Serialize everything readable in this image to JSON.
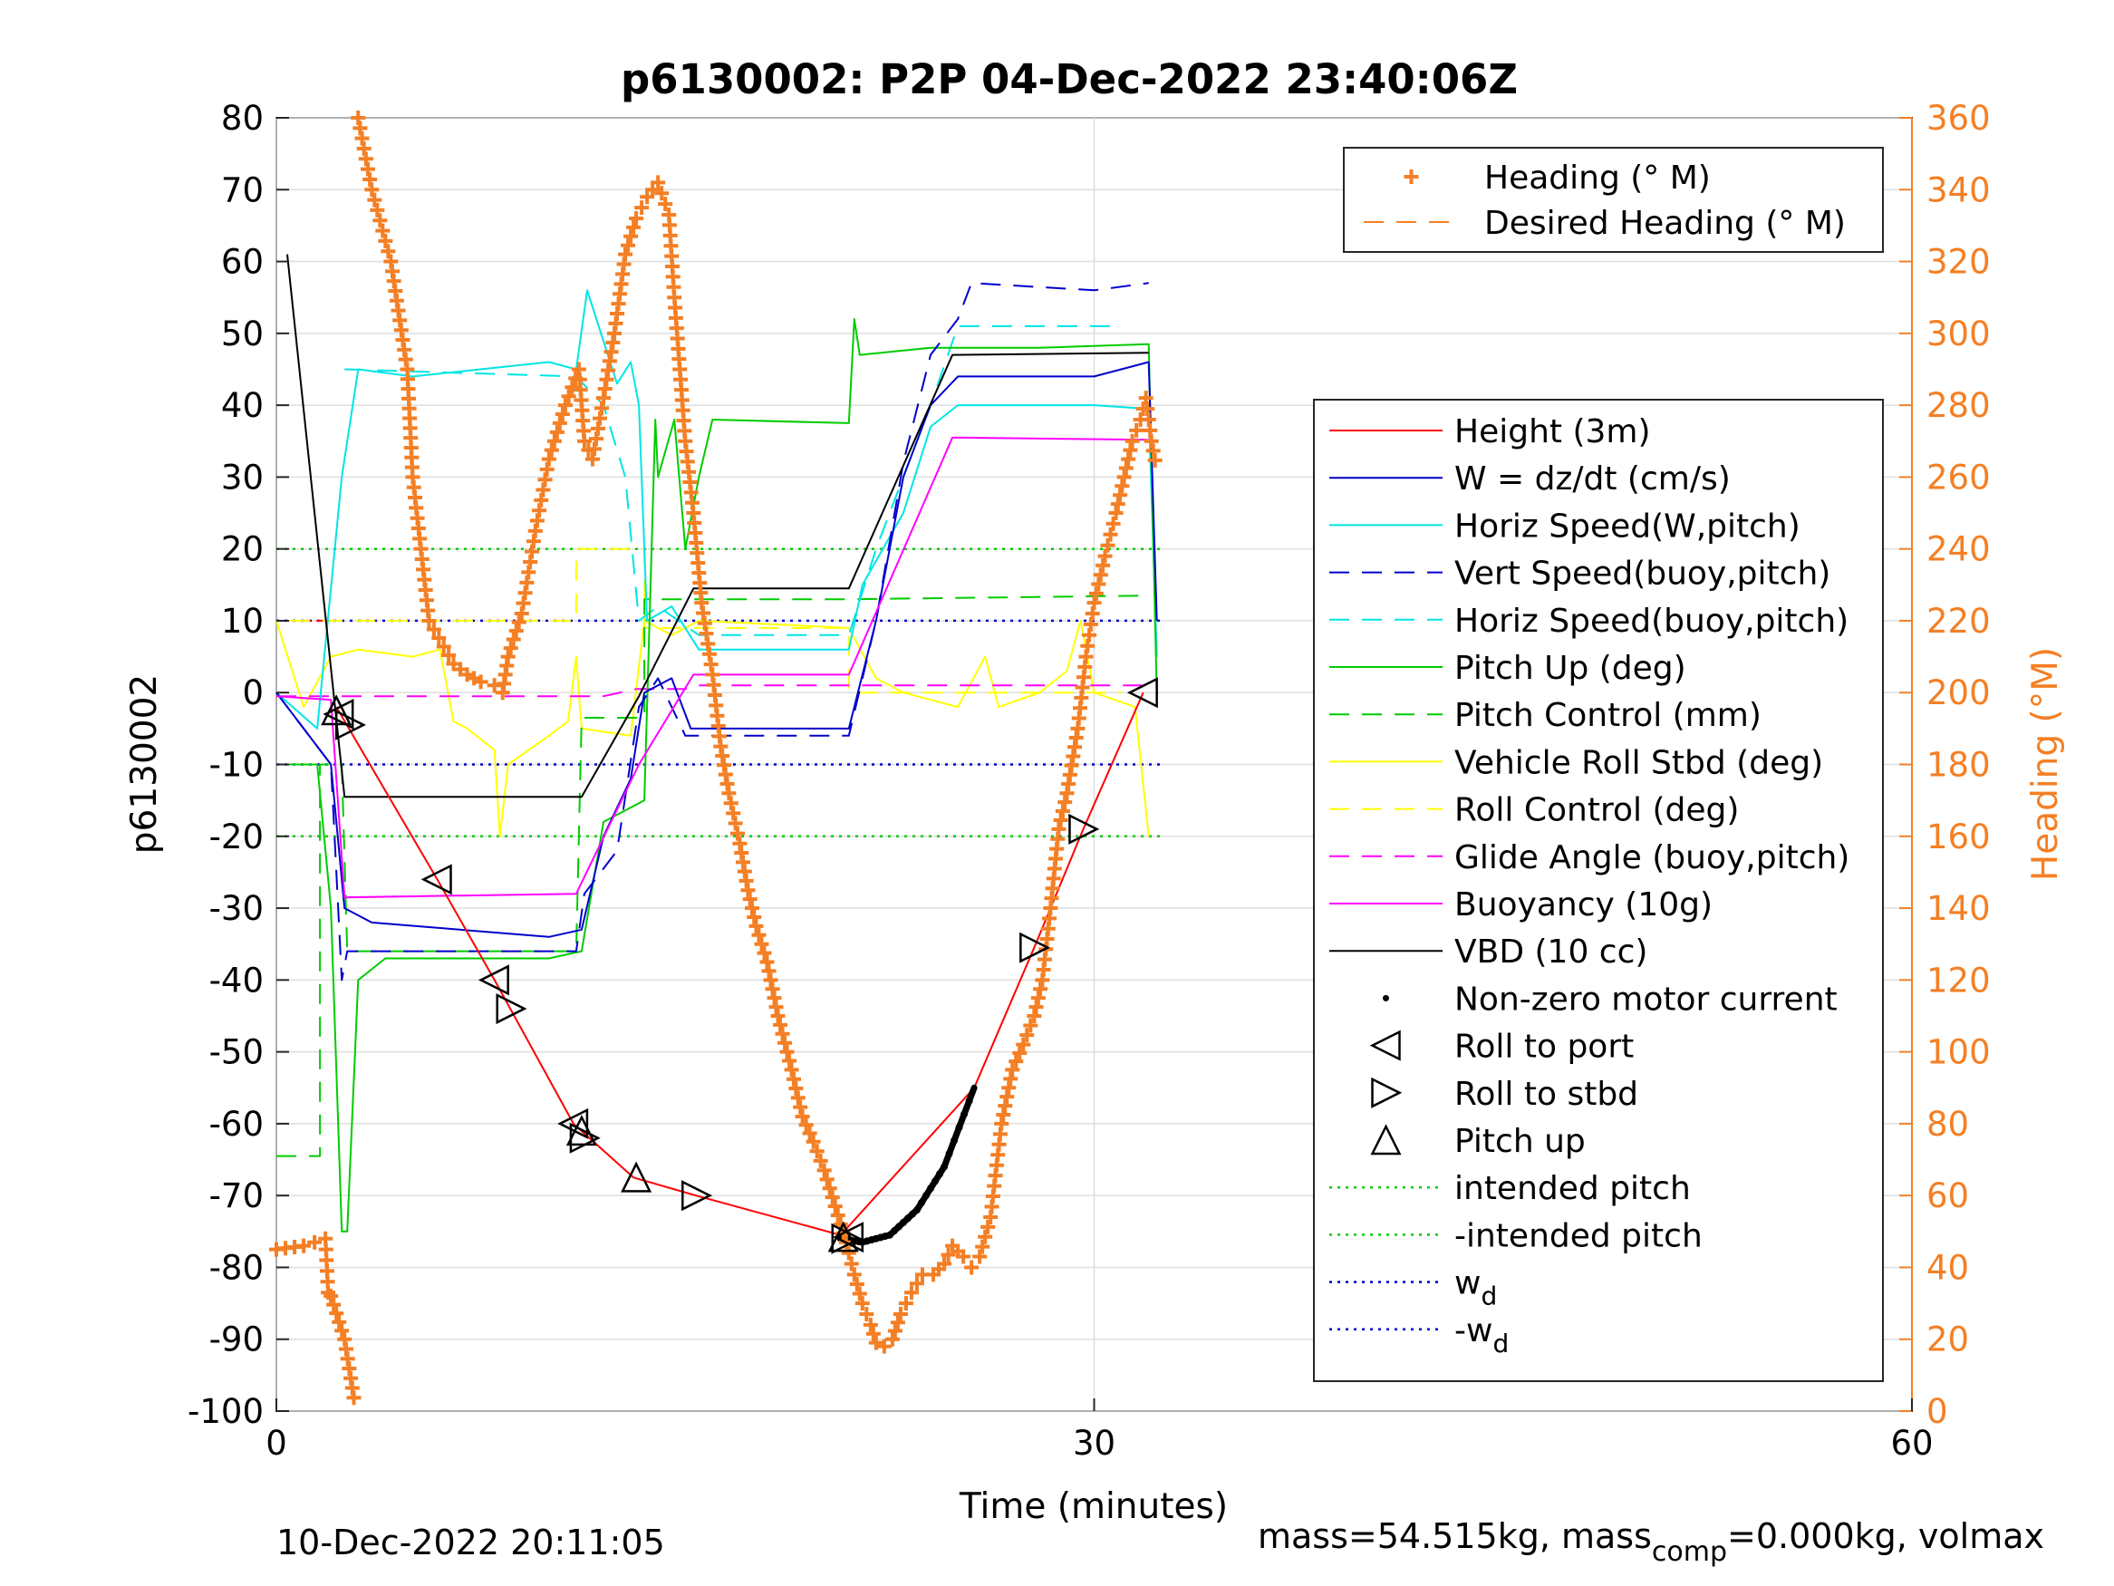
{
  "chart_data": {
    "type": "line",
    "title": "p6130002: P2P 04-Dec-2022 23:40:06Z",
    "xlabel": "Time (minutes)",
    "ylabel": "p6130002",
    "ylabel_right": "Heading (°M)",
    "xlim": [
      0,
      60
    ],
    "ylim": [
      -100,
      80
    ],
    "ylim_right": [
      0,
      360
    ],
    "xticks": [
      "0",
      "30",
      "60"
    ],
    "yticks": [
      "80",
      "70",
      "60",
      "50",
      "40",
      "30",
      "20",
      "10",
      "0",
      "-10",
      "-20",
      "-30",
      "-40",
      "-50",
      "-60",
      "-70",
      "-80",
      "-90",
      "-100"
    ],
    "yticks_right": [
      "360",
      "340",
      "320",
      "300",
      "280",
      "260",
      "240",
      "220",
      "200",
      "180",
      "160",
      "140",
      "120",
      "100",
      "80",
      "60",
      "40",
      "20",
      "0"
    ],
    "grid": true,
    "footer_left": "10-Dec-2022 20:11:05",
    "footer_right": {
      "a": "mass=54.515kg, mass",
      "sub": "comp",
      "b": "=0.000kg, volmax"
    },
    "legend_top": [
      {
        "label": "Heading (° M)",
        "color": "#f47f24",
        "style": "plus"
      },
      {
        "label": "Desired Heading (° M)",
        "color": "#f47f24",
        "style": "dash"
      }
    ],
    "legend_main": [
      {
        "label": "Height (3m)",
        "color": "#ff0000",
        "style": "solid"
      },
      {
        "label": "W = dz/dt (cm/s)",
        "color": "#0000cc",
        "style": "solid"
      },
      {
        "label": "Horiz Speed(W,pitch)",
        "color": "#00e5e5",
        "style": "solid"
      },
      {
        "label": "Vert Speed(buoy,pitch)",
        "color": "#0000cc",
        "style": "dash"
      },
      {
        "label": "Horiz Speed(buoy,pitch)",
        "color": "#00e5e5",
        "style": "dash"
      },
      {
        "label": "Pitch Up (deg)",
        "color": "#00cc00",
        "style": "solid"
      },
      {
        "label": "Pitch Control (mm)",
        "color": "#00cc00",
        "style": "dash"
      },
      {
        "label": "Vehicle Roll Stbd (deg)",
        "color": "#ffff00",
        "style": "solid"
      },
      {
        "label": "Roll Control (deg)",
        "color": "#ffff00",
        "style": "dash"
      },
      {
        "label": "Glide Angle (buoy,pitch)",
        "color": "#ff00ff",
        "style": "dash"
      },
      {
        "label": "Buoyancy (10g)",
        "color": "#ff00ff",
        "style": "solid"
      },
      {
        "label": "VBD (10 cc)",
        "color": "#000000",
        "style": "solid"
      },
      {
        "label": "Non-zero motor current",
        "color": "#000000",
        "style": "dot"
      },
      {
        "label": "Roll to port",
        "color": "#000000",
        "style": "tri-left"
      },
      {
        "label": "Roll to stbd",
        "color": "#000000",
        "style": "tri-right"
      },
      {
        "label": "Pitch up",
        "color": "#000000",
        "style": "tri-up"
      },
      {
        "label": "intended pitch",
        "color": "#00cc00",
        "style": "dotted"
      },
      {
        "label": "-intended pitch",
        "color": "#00cc00",
        "style": "dotted"
      },
      {
        "label": "w",
        "sub": "d",
        "color": "#0000cc",
        "style": "dotted"
      },
      {
        "label": "-w",
        "sub": "d",
        "color": "#0000cc",
        "style": "dotted"
      }
    ],
    "series": {
      "vbd": [
        [
          0.4,
          61
        ],
        [
          2.5,
          -14.5
        ],
        [
          11.2,
          -14.5
        ],
        [
          13.3,
          -0.5
        ],
        [
          15.3,
          14.5
        ],
        [
          21,
          14.5
        ],
        [
          24.8,
          47
        ],
        [
          32,
          47.3
        ]
      ],
      "buoyancy": [
        [
          0,
          -0.5
        ],
        [
          2,
          -1
        ],
        [
          2.5,
          -28.5
        ],
        [
          11,
          -28
        ],
        [
          13.3,
          -10
        ],
        [
          15.3,
          2.5
        ],
        [
          21,
          2.5
        ],
        [
          24.8,
          35.5
        ],
        [
          32,
          35.2
        ]
      ],
      "height": [
        [
          2.2,
          -2
        ],
        [
          5.9,
          -26
        ],
        [
          8,
          -40
        ],
        [
          10.9,
          -60
        ],
        [
          13.1,
          -67.5
        ],
        [
          15.4,
          -70
        ],
        [
          20.7,
          -75.5
        ],
        [
          25.6,
          -55
        ],
        [
          27.8,
          -35.5
        ],
        [
          29.6,
          -19
        ],
        [
          31.8,
          0
        ]
      ],
      "motor_current": [
        [
          20.7,
          -76
        ],
        [
          21.5,
          -76.5
        ],
        [
          22.5,
          -75.5
        ],
        [
          23.5,
          -72
        ],
        [
          24.5,
          -66
        ],
        [
          25.6,
          -55
        ]
      ],
      "w": [
        [
          0,
          0
        ],
        [
          2,
          -10
        ],
        [
          2.5,
          -30
        ],
        [
          3.5,
          -32
        ],
        [
          10,
          -34
        ],
        [
          11.2,
          -33
        ],
        [
          12,
          -20
        ],
        [
          13,
          -12
        ],
        [
          13.5,
          0
        ],
        [
          14.5,
          2
        ],
        [
          15.2,
          -5
        ],
        [
          21,
          -5
        ],
        [
          22,
          10
        ],
        [
          23,
          30
        ],
        [
          24,
          40
        ],
        [
          25,
          44
        ],
        [
          30,
          44
        ],
        [
          32,
          46
        ],
        [
          32.3,
          10
        ]
      ],
      "pitch_up": [
        [
          0,
          -10
        ],
        [
          1.5,
          -10
        ],
        [
          2,
          -30
        ],
        [
          2.4,
          -75
        ],
        [
          2.6,
          -75
        ],
        [
          3,
          -40
        ],
        [
          4,
          -37
        ],
        [
          10,
          -37
        ],
        [
          11.2,
          -36
        ],
        [
          12,
          -18
        ],
        [
          13.5,
          -15
        ],
        [
          13.9,
          38
        ],
        [
          14,
          30
        ],
        [
          14.6,
          38
        ],
        [
          15,
          20
        ],
        [
          15.5,
          30
        ],
        [
          16,
          38
        ],
        [
          21,
          37.5
        ],
        [
          21.2,
          52
        ],
        [
          21.4,
          47
        ],
        [
          24,
          48
        ],
        [
          28,
          48
        ],
        [
          32,
          48.5
        ],
        [
          32.3,
          -0.5
        ]
      ],
      "pitch_control": [
        [
          0,
          -64.5
        ],
        [
          1.6,
          -64.5
        ],
        [
          1.6,
          -10
        ],
        [
          2.4,
          -10
        ],
        [
          2.6,
          -36
        ],
        [
          11,
          -36
        ],
        [
          11.2,
          -3.5
        ],
        [
          13.5,
          -3.5
        ],
        [
          13.5,
          13
        ],
        [
          21,
          13
        ],
        [
          21,
          13
        ],
        [
          32,
          13.5
        ]
      ],
      "horiz_speed": [
        [
          0,
          0
        ],
        [
          1.5,
          -5
        ],
        [
          2.4,
          30
        ],
        [
          3,
          45
        ],
        [
          5,
          44
        ],
        [
          10,
          46
        ],
        [
          11,
          45
        ],
        [
          11.4,
          56
        ],
        [
          12.5,
          43
        ],
        [
          13,
          46
        ],
        [
          13.3,
          40
        ],
        [
          13.6,
          10
        ],
        [
          14.5,
          12
        ],
        [
          15.5,
          6
        ],
        [
          21,
          6
        ],
        [
          21.5,
          15
        ],
        [
          23,
          25
        ],
        [
          24,
          37
        ],
        [
          25,
          40
        ],
        [
          30,
          40
        ],
        [
          32,
          39.5
        ],
        [
          32.3,
          5
        ]
      ],
      "vert_speed_buoy": [
        [
          0,
          0
        ],
        [
          2,
          -10
        ],
        [
          2.4,
          -40
        ],
        [
          2.6,
          -36
        ],
        [
          11,
          -36
        ],
        [
          11.3,
          -28
        ],
        [
          12.5,
          -22
        ],
        [
          13.3,
          -2
        ],
        [
          14,
          2
        ],
        [
          15,
          -6
        ],
        [
          21,
          -6
        ],
        [
          22,
          10
        ],
        [
          23,
          32
        ],
        [
          24,
          47
        ],
        [
          25,
          52
        ],
        [
          25.5,
          57
        ],
        [
          30,
          56
        ],
        [
          32,
          57
        ]
      ],
      "horiz_speed_buoy": [
        [
          2.5,
          45
        ],
        [
          11,
          44
        ],
        [
          12,
          40
        ],
        [
          12.8,
          30
        ],
        [
          13.3,
          10
        ],
        [
          14,
          12
        ],
        [
          15.5,
          8
        ],
        [
          21,
          8
        ],
        [
          22,
          20
        ],
        [
          24,
          40
        ],
        [
          25,
          51
        ],
        [
          31,
          51
        ]
      ],
      "roll": [
        [
          0,
          10
        ],
        [
          1,
          -2
        ],
        [
          2,
          5
        ],
        [
          3,
          6
        ],
        [
          5,
          5
        ],
        [
          6,
          6
        ],
        [
          6.5,
          -4
        ],
        [
          7,
          -5
        ],
        [
          8,
          -8
        ],
        [
          8.2,
          -20
        ],
        [
          8.5,
          -10
        ],
        [
          10,
          -6
        ],
        [
          10.7,
          -4
        ],
        [
          11,
          5
        ],
        [
          11.2,
          -5
        ],
        [
          13,
          -6
        ],
        [
          13.5,
          10
        ],
        [
          14.5,
          8
        ],
        [
          15.5,
          10
        ],
        [
          21,
          9
        ],
        [
          22,
          2
        ],
        [
          23,
          0
        ],
        [
          25,
          -2
        ],
        [
          26,
          5
        ],
        [
          26.5,
          -2
        ],
        [
          28,
          0
        ],
        [
          29,
          3
        ],
        [
          29.5,
          10
        ],
        [
          30,
          0
        ],
        [
          31.5,
          -2
        ],
        [
          32,
          -20
        ]
      ],
      "roll_control": [
        [
          0.5,
          10
        ],
        [
          11,
          10
        ],
        [
          11,
          20
        ],
        [
          13.5,
          20
        ],
        [
          13.5,
          9
        ],
        [
          21,
          9
        ],
        [
          21,
          0
        ],
        [
          31,
          0
        ]
      ],
      "glide_angle": [
        [
          0,
          -0.5
        ],
        [
          12,
          -0.5
        ],
        [
          13.2,
          0.5
        ],
        [
          15,
          0.5
        ],
        [
          15.3,
          1
        ],
        [
          32,
          1
        ]
      ],
      "intended_pitch": [
        [
          0,
          20
        ],
        [
          32.5,
          20
        ]
      ],
      "neg_intended_pitch": [
        [
          0,
          -20
        ],
        [
          32.5,
          -20
        ]
      ],
      "wd": [
        [
          0,
          10
        ],
        [
          32.5,
          10
        ]
      ],
      "neg_wd": [
        [
          0,
          -10
        ],
        [
          32.5,
          -10
        ]
      ],
      "red_dash": [
        [
          1,
          10
        ],
        [
          2,
          10
        ]
      ],
      "heading": [
        [
          0,
          45
        ],
        [
          1,
          46
        ],
        [
          1.8,
          48
        ],
        [
          1.9,
          33
        ],
        [
          2,
          32
        ],
        [
          2.5,
          20
        ],
        [
          2.9,
          1
        ],
        [
          3,
          360
        ],
        [
          3.5,
          340
        ],
        [
          4.2,
          320
        ],
        [
          4.8,
          290
        ],
        [
          5,
          260
        ],
        [
          5.3,
          240
        ],
        [
          5.6,
          220
        ],
        [
          6.5,
          208
        ],
        [
          7,
          205
        ],
        [
          7.5,
          203
        ],
        [
          8,
          202
        ],
        [
          8.3,
          200
        ],
        [
          8.5,
          210
        ],
        [
          9,
          222
        ],
        [
          9.5,
          245
        ],
        [
          10,
          265
        ],
        [
          10.6,
          280
        ],
        [
          11.1,
          290
        ],
        [
          11.3,
          270
        ],
        [
          11.6,
          265
        ],
        [
          12,
          282
        ],
        [
          12.4,
          300
        ],
        [
          12.8,
          322
        ],
        [
          13.2,
          332
        ],
        [
          13.6,
          338
        ],
        [
          14,
          342
        ],
        [
          14.4,
          333
        ],
        [
          14.6,
          310
        ],
        [
          14.8,
          290
        ],
        [
          15,
          270
        ],
        [
          15.3,
          250
        ],
        [
          15.6,
          225
        ],
        [
          16,
          205
        ],
        [
          16.3,
          185
        ],
        [
          16.6,
          172
        ],
        [
          17,
          158
        ],
        [
          17.3,
          145
        ],
        [
          17.6,
          135
        ],
        [
          18,
          125
        ],
        [
          18.4,
          110
        ],
        [
          18.9,
          95
        ],
        [
          19.3,
          82
        ],
        [
          19.7,
          75
        ],
        [
          20.1,
          67
        ],
        [
          20.5,
          57
        ],
        [
          20.9,
          47
        ],
        [
          21.2,
          38
        ],
        [
          21.5,
          30
        ],
        [
          21.8,
          24
        ],
        [
          22,
          19
        ],
        [
          22.3,
          18
        ],
        [
          22.6,
          20
        ],
        [
          22.9,
          27
        ],
        [
          23.3,
          33
        ],
        [
          23.7,
          38
        ],
        [
          24.1,
          38
        ],
        [
          24.5,
          41
        ],
        [
          24.8,
          46
        ],
        [
          25.2,
          43
        ],
        [
          25.5,
          40
        ],
        [
          25.8,
          43
        ],
        [
          26.2,
          54
        ],
        [
          26.6,
          80
        ],
        [
          27,
          95
        ],
        [
          27.4,
          102
        ],
        [
          27.8,
          110
        ],
        [
          28.1,
          120
        ],
        [
          28.4,
          140
        ],
        [
          28.7,
          162
        ],
        [
          29,
          172
        ],
        [
          29.4,
          190
        ],
        [
          29.7,
          210
        ],
        [
          30,
          225
        ],
        [
          30.4,
          238
        ],
        [
          30.8,
          250
        ],
        [
          31.1,
          260
        ],
        [
          31.4,
          270
        ],
        [
          31.7,
          276
        ],
        [
          31.9,
          282
        ],
        [
          32.1,
          270
        ],
        [
          32.3,
          262
        ]
      ],
      "markers_port": [
        [
          2.3,
          -3
        ],
        [
          5.9,
          -26
        ],
        [
          8,
          -40
        ],
        [
          10.9,
          -60
        ],
        [
          21,
          -75.8
        ],
        [
          31.8,
          0
        ]
      ],
      "markers_stbd": [
        [
          2.7,
          -4.5
        ],
        [
          8.6,
          -44
        ],
        [
          11.3,
          -62
        ],
        [
          15.4,
          -70
        ],
        [
          20.9,
          -76
        ],
        [
          27.8,
          -35.5
        ],
        [
          29.6,
          -19
        ]
      ],
      "markers_pitchup": [
        [
          2.2,
          -2.5
        ],
        [
          11.2,
          -61
        ],
        [
          13.2,
          -67.5
        ],
        [
          20.8,
          -75.8
        ]
      ]
    }
  }
}
